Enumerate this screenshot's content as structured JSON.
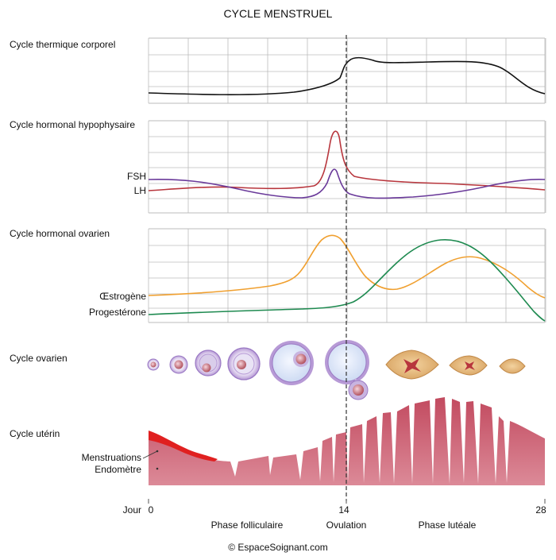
{
  "title": "CYCLE MENSTRUEL",
  "panels": {
    "temperature": {
      "label": "Cycle thermique corporel"
    },
    "pituitary": {
      "label": "Cycle hormonal hypophysaire",
      "series": [
        "FSH",
        "LH"
      ]
    },
    "ovarian_hormones": {
      "label": "Cycle hormonal ovarien",
      "series": [
        "Œstrogène",
        "Progestérone"
      ]
    },
    "ovarian": {
      "label": "Cycle ovarien"
    },
    "uterine": {
      "label": "Cycle utérin",
      "annotations": [
        "Menstruations",
        "Endomètre"
      ]
    }
  },
  "axis": {
    "label": "Jour",
    "ticks": [
      "0",
      "14",
      "28"
    ]
  },
  "phases": [
    "Phase folliculaire",
    "Ovulation",
    "Phase lutéale"
  ],
  "copyright": "© EspaceSoignant.com",
  "colors": {
    "temperature": "#111111",
    "fsh": "#b8363d",
    "lh": "#6a3a9a",
    "estrogen": "#f0a030",
    "progesterone": "#1e8a50",
    "endometrium": "#c95a6c",
    "menstruation": "#e02020",
    "grid": "#bbbbbb",
    "ovulation_line": "#333333"
  }
}
